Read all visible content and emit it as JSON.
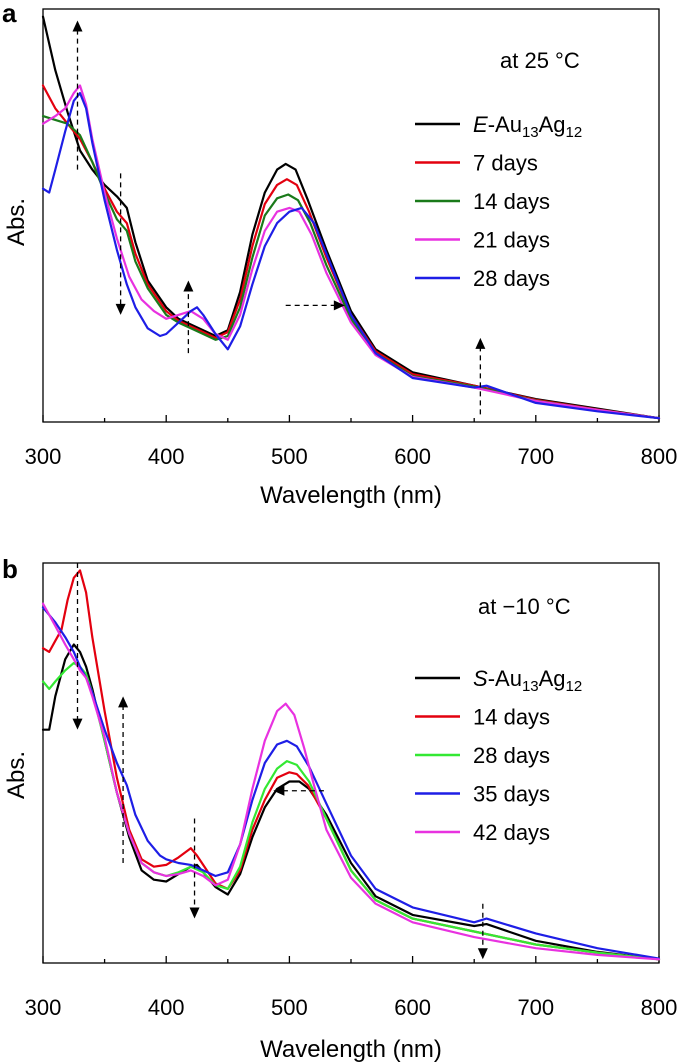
{
  "chart_data": [
    {
      "type": "line",
      "panel_label": "a",
      "annotation": "at 25 °C",
      "xlabel": "Wavelength (nm)",
      "ylabel": "Abs.",
      "xlim": [
        300,
        800
      ],
      "ylim": [
        0,
        1.08
      ],
      "x_ticks": [
        300,
        400,
        500,
        600,
        700,
        800
      ],
      "legend_position": "upper-right",
      "series": [
        {
          "name": "E-Au13Ag12",
          "legend_prefix": "E",
          "legend_rest": "-Au",
          "sub1": "13",
          "mid": "Ag",
          "sub2": "12",
          "color": "#000000",
          "x": [
            300,
            310,
            320,
            330,
            340,
            350,
            360,
            368,
            375,
            385,
            400,
            410,
            420,
            430,
            440,
            450,
            460,
            470,
            480,
            490,
            497,
            505,
            515,
            530,
            550,
            570,
            600,
            650,
            700,
            750,
            800
          ],
          "values": [
            1.06,
            0.92,
            0.81,
            0.71,
            0.66,
            0.62,
            0.59,
            0.56,
            0.47,
            0.37,
            0.3,
            0.27,
            0.255,
            0.24,
            0.225,
            0.24,
            0.34,
            0.49,
            0.6,
            0.66,
            0.675,
            0.66,
            0.58,
            0.45,
            0.29,
            0.19,
            0.13,
            0.095,
            0.06,
            0.035,
            0.01
          ]
        },
        {
          "name": "7 days",
          "color": "#e3000f",
          "x": [
            300,
            310,
            320,
            330,
            340,
            350,
            360,
            368,
            375,
            385,
            400,
            410,
            420,
            430,
            440,
            450,
            460,
            470,
            480,
            490,
            498,
            506,
            516,
            530,
            550,
            570,
            600,
            650,
            700,
            750,
            800
          ],
          "values": [
            0.88,
            0.82,
            0.78,
            0.74,
            0.68,
            0.61,
            0.55,
            0.52,
            0.44,
            0.36,
            0.29,
            0.265,
            0.25,
            0.235,
            0.22,
            0.235,
            0.32,
            0.46,
            0.57,
            0.62,
            0.635,
            0.62,
            0.55,
            0.43,
            0.28,
            0.185,
            0.125,
            0.095,
            0.058,
            0.033,
            0.01
          ]
        },
        {
          "name": "14 days",
          "color": "#1a7a1a",
          "x": [
            300,
            310,
            320,
            330,
            340,
            350,
            360,
            368,
            375,
            385,
            400,
            410,
            420,
            430,
            440,
            450,
            460,
            470,
            480,
            490,
            499,
            507,
            517,
            530,
            550,
            570,
            600,
            650,
            700,
            750,
            800
          ],
          "values": [
            0.8,
            0.79,
            0.78,
            0.75,
            0.68,
            0.6,
            0.53,
            0.5,
            0.42,
            0.35,
            0.28,
            0.26,
            0.245,
            0.23,
            0.215,
            0.225,
            0.3,
            0.43,
            0.54,
            0.585,
            0.595,
            0.58,
            0.52,
            0.41,
            0.27,
            0.18,
            0.12,
            0.093,
            0.056,
            0.032,
            0.01
          ]
        },
        {
          "name": "21 days",
          "color": "#e832e0",
          "x": [
            300,
            310,
            318,
            325,
            330,
            335,
            340,
            350,
            360,
            370,
            380,
            390,
            400,
            410,
            420,
            430,
            440,
            450,
            460,
            470,
            480,
            490,
            500,
            508,
            518,
            530,
            550,
            570,
            600,
            650,
            700,
            750,
            800
          ],
          "values": [
            0.78,
            0.8,
            0.82,
            0.86,
            0.88,
            0.83,
            0.74,
            0.6,
            0.48,
            0.38,
            0.32,
            0.29,
            0.27,
            0.28,
            0.29,
            0.27,
            0.23,
            0.215,
            0.28,
            0.4,
            0.5,
            0.55,
            0.56,
            0.55,
            0.49,
            0.39,
            0.26,
            0.175,
            0.118,
            0.09,
            0.055,
            0.032,
            0.01
          ]
        },
        {
          "name": "28 days",
          "color": "#1e1ee6",
          "x": [
            300,
            305,
            310,
            318,
            325,
            330,
            335,
            340,
            350,
            360,
            368,
            375,
            385,
            395,
            400,
            410,
            420,
            425,
            430,
            440,
            450,
            460,
            470,
            480,
            490,
            500,
            510,
            520,
            530,
            550,
            570,
            600,
            650,
            660,
            700,
            750,
            800
          ],
          "values": [
            0.61,
            0.6,
            0.66,
            0.76,
            0.84,
            0.86,
            0.82,
            0.73,
            0.58,
            0.45,
            0.36,
            0.3,
            0.245,
            0.225,
            0.23,
            0.26,
            0.29,
            0.3,
            0.28,
            0.23,
            0.19,
            0.25,
            0.36,
            0.46,
            0.52,
            0.55,
            0.56,
            0.52,
            0.44,
            0.28,
            0.18,
            0.115,
            0.09,
            0.095,
            0.05,
            0.028,
            0.01
          ]
        }
      ],
      "arrows": [
        {
          "x": 328,
          "y_from": 0.66,
          "y_to": 1.05,
          "dir": "up"
        },
        {
          "x": 363,
          "y_from": 0.65,
          "y_to": 0.28,
          "dir": "down"
        },
        {
          "x": 418,
          "y_from": 0.18,
          "y_to": 0.37,
          "dir": "up"
        },
        {
          "x": 655,
          "y_from": 0.02,
          "y_to": 0.22,
          "dir": "up"
        },
        {
          "x_from": 497,
          "x_to": 545,
          "y": 0.305,
          "dir": "right"
        }
      ]
    },
    {
      "type": "line",
      "panel_label": "b",
      "annotation": "at −10 °C",
      "xlabel": "Wavelength (nm)",
      "ylabel": "Abs.",
      "xlim": [
        300,
        800
      ],
      "ylim": [
        0,
        1.08
      ],
      "x_ticks": [
        300,
        400,
        500,
        600,
        700,
        800
      ],
      "legend_position": "upper-right",
      "series": [
        {
          "name": "S-Au13Ag12",
          "legend_prefix": "S",
          "legend_rest": "-Au",
          "sub1": "13",
          "mid": "Ag",
          "sub2": "12",
          "color": "#000000",
          "x": [
            300,
            305,
            310,
            318,
            325,
            330,
            335,
            340,
            350,
            360,
            370,
            380,
            390,
            400,
            410,
            420,
            425,
            430,
            440,
            450,
            460,
            470,
            480,
            490,
            500,
            508,
            516,
            530,
            550,
            570,
            600,
            650,
            660,
            700,
            750,
            800
          ],
          "values": [
            0.63,
            0.63,
            0.72,
            0.82,
            0.86,
            0.84,
            0.8,
            0.74,
            0.6,
            0.46,
            0.34,
            0.25,
            0.225,
            0.22,
            0.24,
            0.26,
            0.265,
            0.245,
            0.205,
            0.185,
            0.24,
            0.34,
            0.42,
            0.47,
            0.49,
            0.49,
            0.47,
            0.4,
            0.27,
            0.18,
            0.13,
            0.1,
            0.105,
            0.06,
            0.03,
            0.01
          ]
        },
        {
          "name": "14 days",
          "color": "#e3000f",
          "x": [
            300,
            305,
            310,
            315,
            320,
            325,
            330,
            335,
            340,
            350,
            360,
            370,
            380,
            390,
            400,
            410,
            420,
            425,
            430,
            440,
            450,
            460,
            470,
            480,
            490,
            500,
            506,
            515,
            530,
            550,
            570,
            600,
            650,
            700,
            750,
            800
          ],
          "values": [
            0.85,
            0.84,
            0.87,
            0.9,
            0.98,
            1.04,
            1.06,
            1.0,
            0.88,
            0.68,
            0.5,
            0.36,
            0.28,
            0.26,
            0.265,
            0.285,
            0.31,
            0.29,
            0.265,
            0.215,
            0.2,
            0.25,
            0.36,
            0.44,
            0.5,
            0.515,
            0.51,
            0.48,
            0.39,
            0.25,
            0.17,
            0.12,
            0.085,
            0.05,
            0.028,
            0.01
          ]
        },
        {
          "name": "28 days",
          "color": "#33e833",
          "x": [
            300,
            305,
            310,
            318,
            325,
            330,
            335,
            340,
            350,
            360,
            370,
            380,
            390,
            400,
            410,
            420,
            430,
            440,
            450,
            460,
            470,
            480,
            490,
            498,
            506,
            516,
            530,
            550,
            570,
            600,
            650,
            700,
            750,
            800
          ],
          "values": [
            0.76,
            0.74,
            0.76,
            0.79,
            0.81,
            0.8,
            0.78,
            0.73,
            0.6,
            0.46,
            0.35,
            0.27,
            0.245,
            0.235,
            0.245,
            0.26,
            0.245,
            0.21,
            0.2,
            0.26,
            0.38,
            0.47,
            0.525,
            0.545,
            0.535,
            0.49,
            0.39,
            0.25,
            0.17,
            0.12,
            0.085,
            0.05,
            0.028,
            0.01
          ]
        },
        {
          "name": "35 days",
          "color": "#1e1ee6",
          "x": [
            300,
            310,
            318,
            325,
            330,
            335,
            340,
            350,
            360,
            368,
            375,
            385,
            395,
            400,
            410,
            420,
            430,
            440,
            450,
            460,
            470,
            480,
            490,
            498,
            506,
            516,
            530,
            550,
            570,
            600,
            650,
            660,
            700,
            750,
            800
          ],
          "values": [
            0.96,
            0.92,
            0.88,
            0.84,
            0.8,
            0.77,
            0.73,
            0.63,
            0.54,
            0.48,
            0.4,
            0.33,
            0.29,
            0.28,
            0.27,
            0.265,
            0.25,
            0.235,
            0.245,
            0.32,
            0.44,
            0.54,
            0.59,
            0.6,
            0.585,
            0.53,
            0.43,
            0.29,
            0.2,
            0.15,
            0.11,
            0.12,
            0.08,
            0.04,
            0.012
          ]
        },
        {
          "name": "42 days",
          "color": "#e832e0",
          "x": [
            300,
            305,
            310,
            318,
            325,
            330,
            335,
            340,
            350,
            360,
            370,
            380,
            390,
            400,
            410,
            420,
            430,
            440,
            450,
            460,
            470,
            480,
            490,
            497,
            504,
            512,
            520,
            530,
            550,
            570,
            600,
            650,
            700,
            750,
            800
          ],
          "values": [
            0.97,
            0.94,
            0.91,
            0.86,
            0.82,
            0.79,
            0.77,
            0.72,
            0.61,
            0.46,
            0.35,
            0.27,
            0.245,
            0.235,
            0.24,
            0.25,
            0.235,
            0.21,
            0.225,
            0.32,
            0.47,
            0.6,
            0.68,
            0.7,
            0.67,
            0.58,
            0.48,
            0.36,
            0.23,
            0.16,
            0.11,
            0.07,
            0.04,
            0.022,
            0.01
          ]
        }
      ],
      "arrows": [
        {
          "x": 328,
          "y_from": 1.08,
          "y_to": 0.63,
          "dir": "down"
        },
        {
          "x": 365,
          "y_from": 0.27,
          "y_to": 0.72,
          "dir": "up"
        },
        {
          "x": 423,
          "y_from": 0.39,
          "y_to": 0.12,
          "dir": "down"
        },
        {
          "x": 657,
          "y_from": 0.16,
          "y_to": 0.01,
          "dir": "down"
        },
        {
          "x_from": 528,
          "x_to": 487,
          "y": 0.465,
          "dir": "left"
        }
      ]
    }
  ]
}
